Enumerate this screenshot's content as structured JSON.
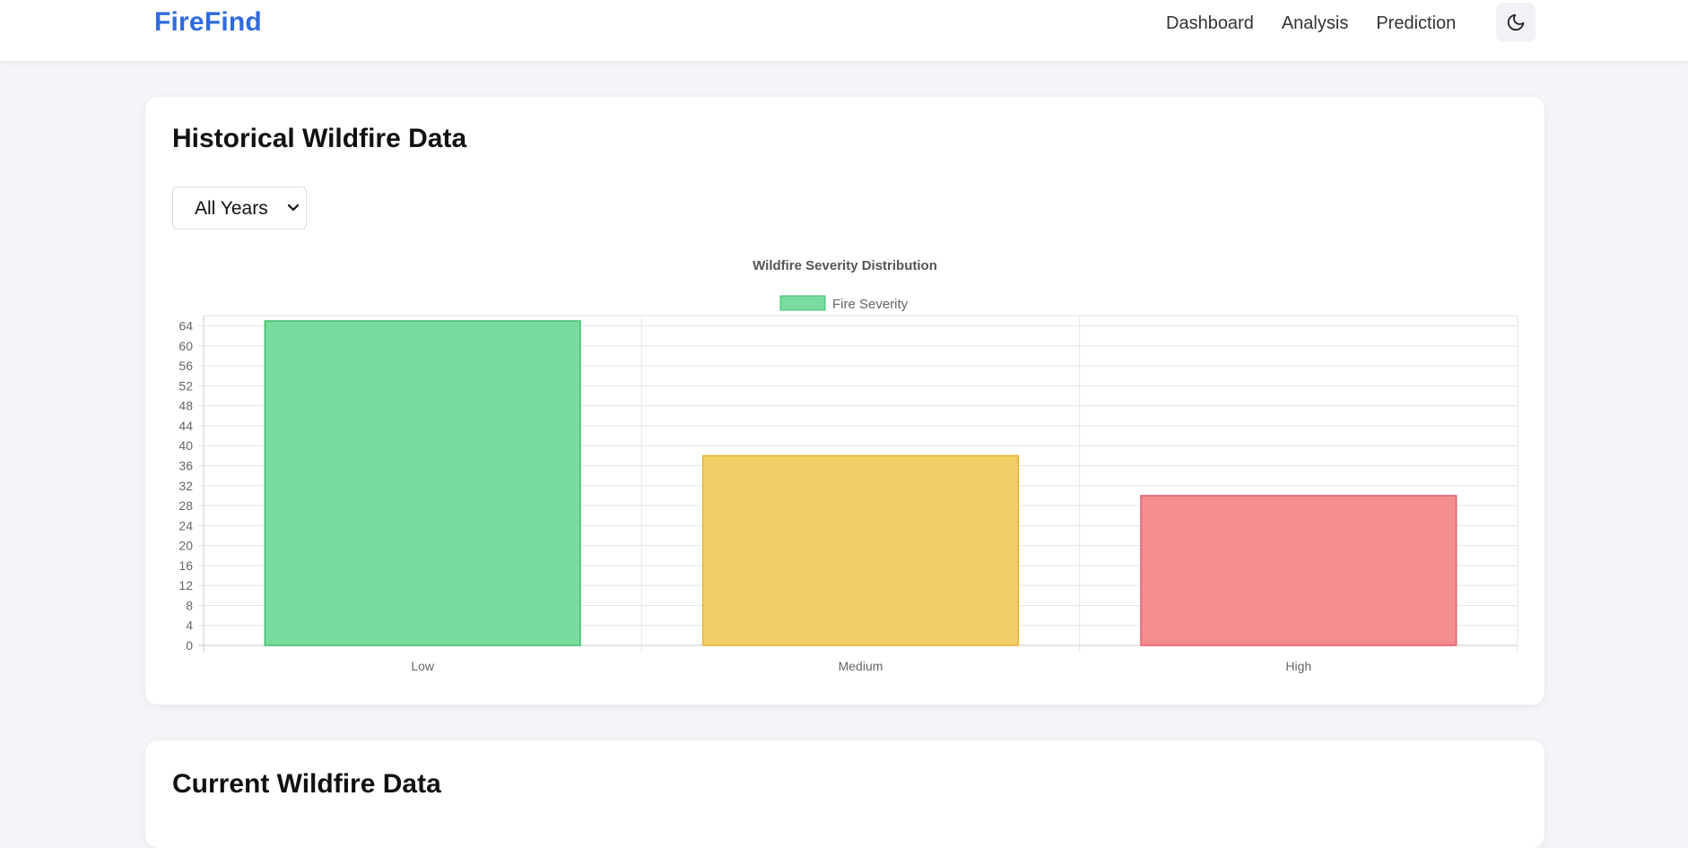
{
  "navbar": {
    "brand": "FireFind",
    "links": [
      "Dashboard",
      "Analysis",
      "Prediction"
    ],
    "theme_icon": "moon-icon"
  },
  "historical": {
    "title": "Historical Wildfire Data",
    "year_filter": {
      "selected": "All Years"
    }
  },
  "current": {
    "title": "Current Wildfire Data"
  },
  "colors": {
    "brand": "#2f6bdc",
    "low_fill": "#79dc9c",
    "low_border": "#3fbf6c",
    "medium_fill": "#f0cf68",
    "medium_border": "#e2b52c",
    "high_fill": "#f48d8d",
    "high_border": "#e35d6a"
  },
  "chart_data": {
    "type": "bar",
    "title": "Wildfire Severity Distribution",
    "categories": [
      "Low",
      "Medium",
      "High"
    ],
    "series": [
      {
        "name": "Fire Severity",
        "values": [
          65,
          38,
          30
        ]
      }
    ],
    "ylim": [
      0,
      65
    ],
    "yticks": [
      0,
      4,
      8,
      12,
      16,
      20,
      24,
      28,
      32,
      36,
      40,
      44,
      48,
      52,
      56,
      60,
      64
    ],
    "grid": true,
    "legend": "top-center"
  }
}
